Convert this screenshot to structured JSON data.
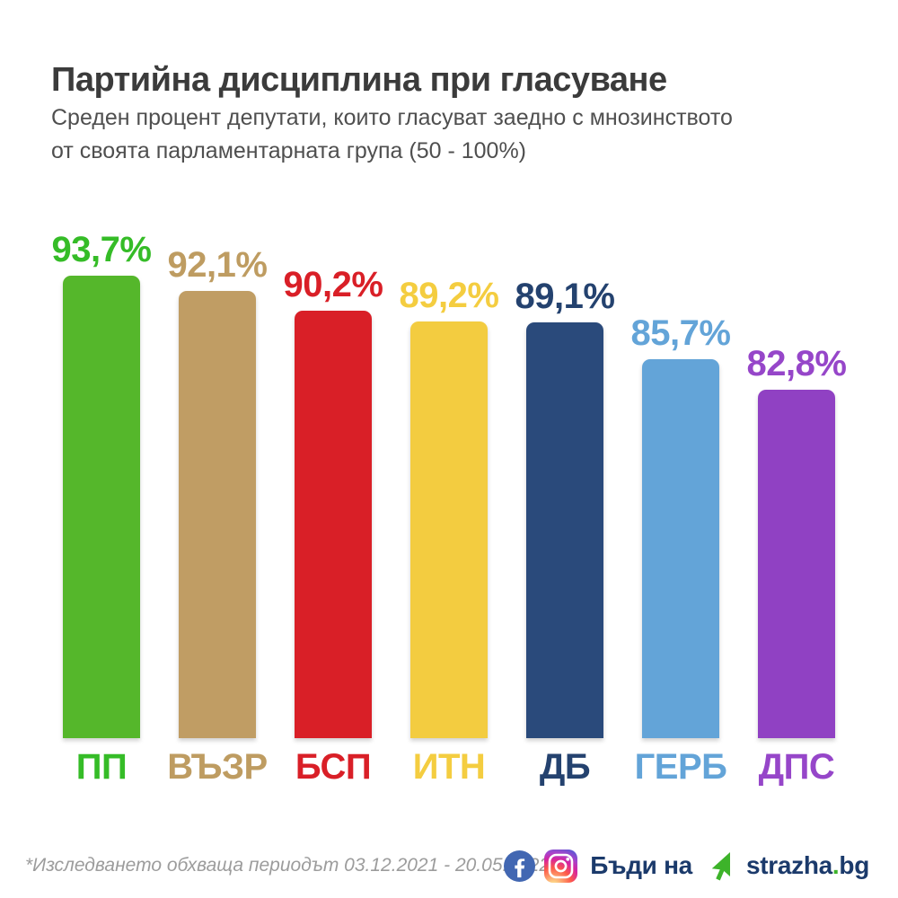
{
  "header": {
    "title": "Партийна дисциплина при гласуване",
    "subtitle_line1": "Среден процент депутати, които гласуват заедно с мнозинството",
    "subtitle_line2": "от своята парламентарната група (50 - 100%)"
  },
  "chart_data": {
    "type": "bar",
    "title": "Партийна дисциплина при гласуване",
    "subtitle": "Среден процент депутати, които гласуват заедно с мнозинството от своята парламентарната група (50 - 100%)",
    "categories": [
      "ПП",
      "ВЪЗР",
      "БСП",
      "ИТН",
      "ДБ",
      "ГЕРБ",
      "ДПС"
    ],
    "values": [
      93.7,
      92.1,
      90.2,
      89.2,
      89.1,
      85.7,
      82.8
    ],
    "value_labels": [
      "93,7%",
      "92,1%",
      "90,2%",
      "89,2%",
      "89,1%",
      "85,7%",
      "82,8%"
    ],
    "bar_colors": [
      "#55B72B",
      "#C09D64",
      "#D91F27",
      "#F3CC40",
      "#2A4A7B",
      "#63A4D8",
      "#9041C3"
    ],
    "text_colors": [
      "#35BC27",
      "#BE9C61",
      "#D91F27",
      "#F4CD40",
      "#24426F",
      "#63A4D8",
      "#9646C9"
    ],
    "ylim": [
      50,
      100
    ],
    "xlabel": "",
    "ylabel": "",
    "grid": false,
    "legend": "none"
  },
  "footer": {
    "note": "*Изследването обхваща периодът 03.12.2021 - 20.05.2022",
    "social": {
      "facebook_icon": "facebook",
      "instagram_icon": "instagram",
      "cursor_icon": "cursor-arrow",
      "cta_text": "Бъди на",
      "site_name": "strazha",
      "site_dot": ".",
      "site_tld": "bg",
      "brand_navy": "#1B3A6B",
      "brand_green": "#3DB32A",
      "facebook_blue": "#4267B2"
    }
  }
}
